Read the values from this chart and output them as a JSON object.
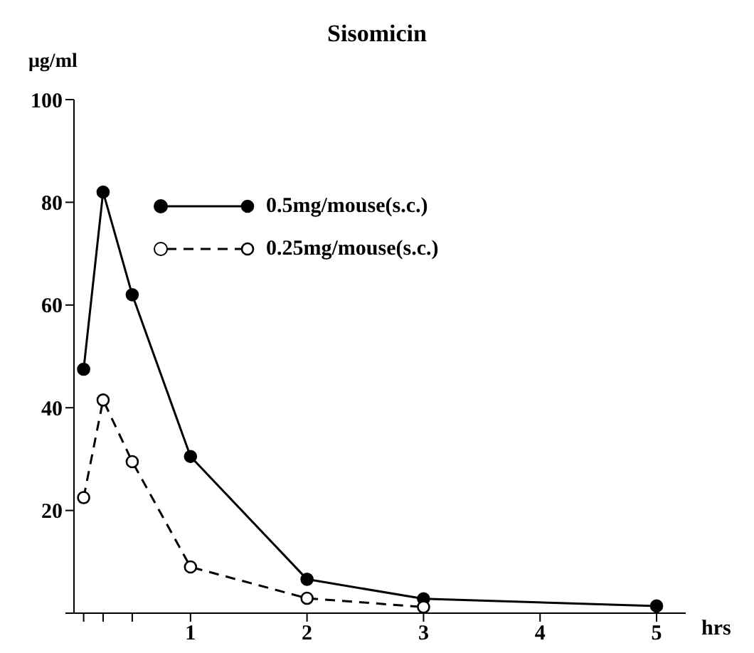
{
  "chart_data": {
    "type": "line",
    "title": "Sisomicin",
    "ylabel": "μg/ml",
    "xlabel": "hrs",
    "series": [
      {
        "name": "0.5mg/mouse(s.c.)",
        "color": "#000000",
        "line_style": "solid",
        "marker": "circle",
        "x": [
          0.083,
          0.25,
          0.5,
          1,
          2,
          3,
          5
        ],
        "values": [
          47.5,
          82,
          62,
          30.5,
          6.6,
          2.8,
          1.4
        ]
      },
      {
        "name": "0.25mg/mouse(s.c.)",
        "color": "#000000",
        "line_style": "dashed",
        "marker": "circle",
        "x": [
          0.083,
          0.25,
          0.5,
          1,
          2,
          3
        ],
        "values": [
          22.5,
          41.5,
          29.5,
          9,
          2.9,
          1.2
        ]
      }
    ],
    "xlim": [
      0,
      5.25
    ],
    "xticks": [
      {
        "value": 0.083,
        "label": null
      },
      {
        "value": 0.25,
        "label": null
      },
      {
        "value": 0.5,
        "label": null
      },
      1,
      2,
      3,
      4,
      5
    ],
    "ylim": [
      0,
      100
    ],
    "yticks": [
      {
        "value": 0,
        "label": null
      },
      20,
      40,
      60,
      80,
      100
    ],
    "grid": false,
    "legend": "top"
  }
}
